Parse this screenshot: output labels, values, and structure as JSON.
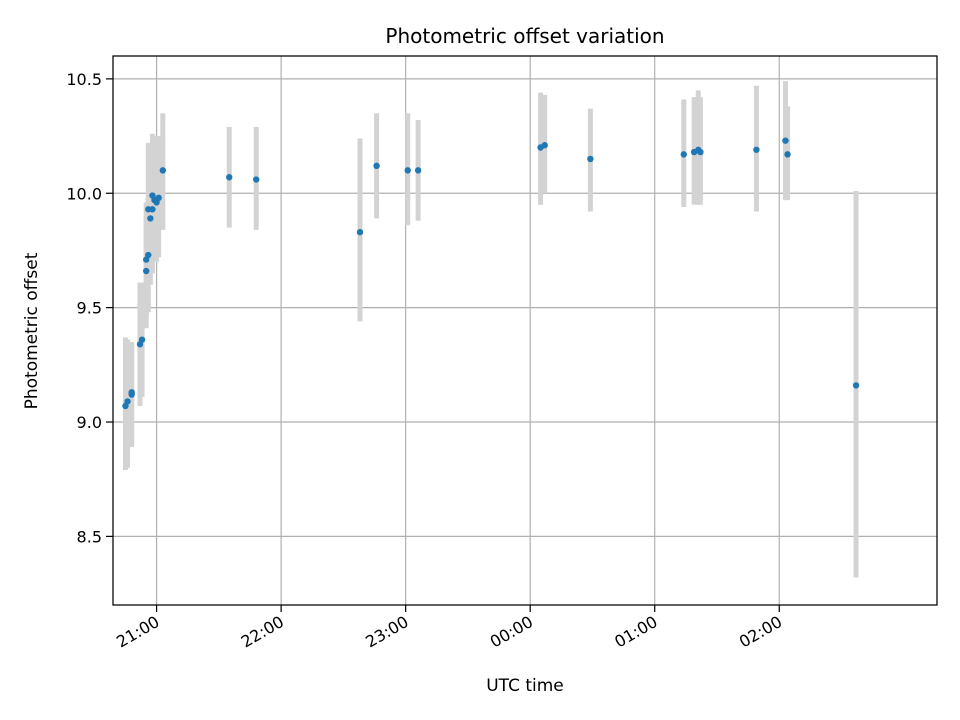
{
  "chart_data": {
    "type": "scatter",
    "title": "Photometric offset variation",
    "xlabel": "UTC time",
    "ylabel": "Photometric offset",
    "x_axis": {
      "kind": "time",
      "range": [
        "20:39",
        "03:16"
      ],
      "ticks": [
        "21:00",
        "22:00",
        "23:00",
        "00:00",
        "01:00",
        "02:00"
      ]
    },
    "y_axis": {
      "range": [
        8.2,
        10.6
      ],
      "ticks": [
        "8.5",
        "9.0",
        "9.5",
        "10.0",
        "10.5"
      ]
    },
    "grid": true,
    "colors": {
      "point": "#1f77b4",
      "error_bar": "#d3d3d3",
      "grid": "#b0b0b0"
    },
    "points": [
      {
        "x": "20:45",
        "y": 9.07,
        "low": 8.79,
        "high": 9.37
      },
      {
        "x": "20:46",
        "y": 9.09,
        "low": 8.8,
        "high": 9.36
      },
      {
        "x": "20:48",
        "y": 9.12,
        "low": 8.89,
        "high": 9.34
      },
      {
        "x": "20:48",
        "y": 9.13,
        "low": 8.9,
        "high": 9.35
      },
      {
        "x": "20:52",
        "y": 9.34,
        "low": 9.07,
        "high": 9.61
      },
      {
        "x": "20:53",
        "y": 9.36,
        "low": 9.11,
        "high": 9.61
      },
      {
        "x": "20:55",
        "y": 9.66,
        "low": 9.41,
        "high": 9.91
      },
      {
        "x": "20:55",
        "y": 9.71,
        "low": 9.46,
        "high": 9.96
      },
      {
        "x": "20:56",
        "y": 9.73,
        "low": 9.48,
        "high": 9.98
      },
      {
        "x": "20:56",
        "y": 9.93,
        "low": 9.62,
        "high": 10.22
      },
      {
        "x": "20:57",
        "y": 9.89,
        "low": 9.6,
        "high": 10.21
      },
      {
        "x": "20:58",
        "y": 9.93,
        "low": 9.65,
        "high": 10.21
      },
      {
        "x": "20:58",
        "y": 9.99,
        "low": 9.72,
        "high": 10.26
      },
      {
        "x": "20:59",
        "y": 9.97,
        "low": 9.7,
        "high": 10.24
      },
      {
        "x": "21:00",
        "y": 9.96,
        "low": 9.7,
        "high": 10.25
      },
      {
        "x": "21:01",
        "y": 9.98,
        "low": 9.72,
        "high": 10.25
      },
      {
        "x": "21:03",
        "y": 10.1,
        "low": 9.84,
        "high": 10.35
      },
      {
        "x": "21:35",
        "y": 10.07,
        "low": 9.85,
        "high": 10.29
      },
      {
        "x": "21:48",
        "y": 10.06,
        "low": 9.84,
        "high": 10.29
      },
      {
        "x": "22:38",
        "y": 9.83,
        "low": 9.44,
        "high": 10.24
      },
      {
        "x": "22:46",
        "y": 10.12,
        "low": 9.89,
        "high": 10.35
      },
      {
        "x": "23:01",
        "y": 10.1,
        "low": 9.86,
        "high": 10.35
      },
      {
        "x": "23:06",
        "y": 10.1,
        "low": 9.88,
        "high": 10.32
      },
      {
        "x": "00:05",
        "y": 10.2,
        "low": 9.95,
        "high": 10.44
      },
      {
        "x": "00:07",
        "y": 10.21,
        "low": 10.0,
        "high": 10.43
      },
      {
        "x": "00:29",
        "y": 10.15,
        "low": 9.92,
        "high": 10.37
      },
      {
        "x": "01:14",
        "y": 10.17,
        "low": 9.94,
        "high": 10.41
      },
      {
        "x": "01:19",
        "y": 10.18,
        "low": 9.95,
        "high": 10.42
      },
      {
        "x": "01:21",
        "y": 10.19,
        "low": 9.95,
        "high": 10.45
      },
      {
        "x": "01:22",
        "y": 10.18,
        "low": 9.95,
        "high": 10.42
      },
      {
        "x": "01:49",
        "y": 10.19,
        "low": 9.92,
        "high": 10.47
      },
      {
        "x": "02:03",
        "y": 10.23,
        "low": 9.97,
        "high": 10.49
      },
      {
        "x": "02:04",
        "y": 10.17,
        "low": 9.97,
        "high": 10.38
      },
      {
        "x": "02:37",
        "y": 9.16,
        "low": 8.32,
        "high": 10.01
      }
    ]
  }
}
